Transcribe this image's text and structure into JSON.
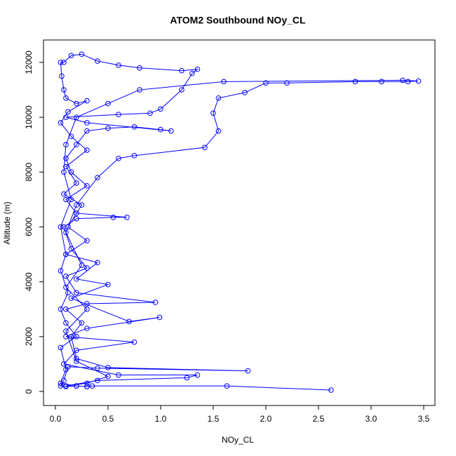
{
  "chart_data": {
    "type": "line",
    "title": "ATOM2 Southbound NOy_CL",
    "x_label": "NOy_CL",
    "y_label": "Altitude (m)",
    "color": "#0000ff",
    "markers": true,
    "x": [
      2.62,
      1.63,
      0.35,
      0.3,
      0.2,
      0.1,
      0.05,
      0.08,
      0.12,
      0.4,
      1.83,
      0.5,
      0.2,
      0.15,
      0.25,
      0.1,
      0.3,
      0.95,
      0.2,
      0.1,
      0.3,
      0.15,
      0.08,
      0.2,
      0.55,
      0.68,
      0.2,
      0.1,
      0.3,
      0.15,
      0.1,
      0.2,
      0.3,
      0.5,
      0.75,
      1.0,
      1.1,
      0.3,
      0.1,
      0.6,
      0.9,
      1.0,
      1.2,
      1.3,
      1.35,
      1.2,
      0.8,
      0.6,
      0.4,
      0.25,
      0.15,
      0.08,
      0.05,
      0.06,
      0.08,
      0.1,
      0.2,
      0.3,
      0.12,
      0.05,
      0.15,
      0.3,
      0.1,
      0.2,
      0.08,
      0.25,
      0.12,
      0.3,
      0.1,
      0.4,
      0.2,
      0.5,
      0.15,
      0.7,
      0.99,
      0.3,
      0.1,
      0.75,
      0.2,
      0.08,
      0.6,
      1.35,
      1.25,
      0.4,
      0.1,
      0.3,
      0.5,
      0.2,
      0.1,
      0.3,
      0.1,
      0.25,
      0.1,
      0.2,
      0.4,
      0.6,
      0.75,
      1.42,
      1.55,
      1.5,
      1.55,
      1.8,
      2.0,
      2.2,
      2.85,
      3.1,
      3.35,
      3.45,
      3.3,
      1.6,
      0.8,
      0.5,
      0.2,
      0.1,
      0.08,
      0.15,
      0.05,
      0.1,
      0.05,
      0.12,
      0.05,
      0.1,
      0.2,
      0.05,
      0.1,
      0.05,
      0.2,
      0.3
    ],
    "values": [
      50,
      200,
      200,
      180,
      200,
      180,
      200,
      400,
      900,
      850,
      750,
      870,
      1200,
      2000,
      2500,
      3000,
      3200,
      3250,
      3600,
      4200,
      4500,
      5200,
      6000,
      6300,
      6350,
      6350,
      6500,
      7000,
      7500,
      8000,
      8500,
      9000,
      9500,
      9600,
      9650,
      9550,
      9500,
      9800,
      10000,
      10100,
      10150,
      10300,
      11000,
      11600,
      11750,
      11700,
      11800,
      11900,
      12050,
      12300,
      12250,
      12000,
      12000,
      11500,
      11000,
      10700,
      10500,
      10600,
      10200,
      9800,
      9300,
      8800,
      8200,
      7600,
      7200,
      6800,
      6000,
      5500,
      5000,
      4700,
      4100,
      3900,
      3400,
      2550,
      2700,
      2300,
      2000,
      1800,
      1500,
      1000,
      600,
      600,
      500,
      400,
      200,
      300,
      550,
      1100,
      2200,
      3000,
      3800,
      4600,
      5800,
      6800,
      7800,
      8500,
      8600,
      8900,
      9500,
      10150,
      10700,
      10900,
      11250,
      11250,
      11300,
      11300,
      11300,
      11320,
      11350,
      11300,
      11000,
      10500,
      10000,
      9000,
      8000,
      7000,
      6000,
      5000,
      4400,
      3600,
      3000,
      2500,
      2000,
      1600,
      800,
      300,
      200,
      180
    ],
    "xlim": [
      -0.113,
      3.607
    ],
    "ylim": [
      -512,
      12818
    ],
    "xticks": [
      {
        "value": 0,
        "label": "0.0"
      },
      0.5,
      {
        "value": 1,
        "label": "1.0"
      },
      1.5,
      {
        "value": 2,
        "label": "2.0"
      },
      2.5,
      {
        "value": 3,
        "label": "3.0"
      },
      3.5
    ],
    "yticks": [
      0,
      2000,
      4000,
      6000,
      8000,
      10000,
      12000
    ]
  }
}
